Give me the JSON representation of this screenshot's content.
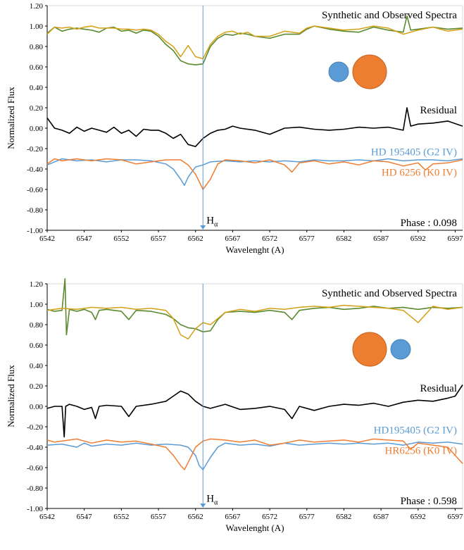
{
  "chart_data": [
    {
      "type": "line",
      "xlabel": "Wavelenght (A)",
      "ylabel": "Normalized Flux",
      "xlim": [
        6542,
        6598
      ],
      "ylim": [
        -1.0,
        1.2
      ],
      "xticks": [
        6542,
        6547,
        6552,
        6557,
        6562,
        6567,
        6572,
        6577,
        6582,
        6587,
        6592,
        6597
      ],
      "yticks": [
        "1.20",
        "1.00",
        "0.80",
        "0.60",
        "0.40",
        "0.20",
        "0.00",
        "-0.20",
        "-0.40",
        "-0.60",
        "-0.80",
        "-1.00"
      ],
      "grid": false,
      "annotations": {
        "synthetic_observed": "Synthetic and Observed Spectra",
        "residual": "Residual",
        "primary": "HD 195405 (G2 IV)",
        "secondary": "HD 6256 (K0 IV)",
        "phase": "Phase : 0.098",
        "halpha": "H",
        "halpha_sub": "α"
      },
      "halpha_x": 6563.0,
      "colors": {
        "observed": "#5b8a2e",
        "synthetic": "#d4a017",
        "residual": "#000000",
        "primary": "#5b9bd5",
        "secondary": "#ed7d31"
      },
      "star_order": [
        "blue",
        "orange"
      ],
      "series": [
        {
          "key": "observed",
          "x": [
            6542,
            6543,
            6544,
            6545,
            6546,
            6547,
            6548,
            6549,
            6550,
            6551,
            6552,
            6553,
            6554,
            6555,
            6556,
            6557,
            6558,
            6559,
            6560,
            6561,
            6562,
            6563,
            6564,
            6565,
            6566,
            6567,
            6568,
            6569,
            6570,
            6572,
            6574,
            6576,
            6577,
            6578,
            6580,
            6582,
            6584,
            6586,
            6588,
            6590,
            6590.5,
            6591,
            6592,
            6594,
            6596,
            6598
          ],
          "values": [
            0.93,
            0.99,
            0.95,
            0.97,
            0.98,
            0.97,
            0.96,
            0.94,
            0.98,
            0.99,
            0.95,
            0.96,
            0.93,
            0.96,
            0.95,
            0.9,
            0.82,
            0.76,
            0.66,
            0.63,
            0.62,
            0.63,
            0.8,
            0.88,
            0.92,
            0.91,
            0.93,
            0.92,
            0.9,
            0.88,
            0.92,
            0.92,
            0.97,
            1.0,
            0.97,
            0.95,
            0.94,
            0.99,
            0.96,
            0.94,
            1.1,
            0.96,
            0.97,
            0.99,
            0.97,
            0.98
          ]
        },
        {
          "key": "synthetic",
          "x": [
            6542,
            6543,
            6544,
            6545,
            6546,
            6547,
            6548,
            6549,
            6550,
            6551,
            6552,
            6553,
            6554,
            6555,
            6556,
            6557,
            6558,
            6559,
            6560,
            6561,
            6562,
            6563,
            6564,
            6565,
            6566,
            6567,
            6568,
            6569,
            6570,
            6572,
            6574,
            6576,
            6577,
            6578,
            6580,
            6582,
            6584,
            6586,
            6588,
            6590,
            6592,
            6594,
            6596,
            6598
          ],
          "values": [
            0.92,
            0.99,
            0.98,
            0.99,
            0.97,
            0.99,
            1.0,
            0.98,
            0.98,
            0.98,
            0.97,
            0.97,
            0.96,
            0.97,
            0.96,
            0.92,
            0.85,
            0.8,
            0.7,
            0.81,
            0.7,
            0.68,
            0.82,
            0.9,
            0.94,
            0.95,
            0.92,
            0.94,
            0.9,
            0.9,
            0.95,
            0.93,
            0.98,
            1.0,
            0.98,
            0.96,
            0.97,
            1.0,
            0.98,
            0.92,
            0.96,
            0.99,
            0.95,
            0.97
          ]
        },
        {
          "key": "residual",
          "x": [
            6542,
            6543,
            6544,
            6545,
            6546,
            6547,
            6548,
            6549,
            6550,
            6551,
            6552,
            6553,
            6554,
            6555,
            6556,
            6557,
            6558,
            6559,
            6560,
            6561,
            6562,
            6563,
            6564,
            6565,
            6566,
            6567,
            6568,
            6570,
            6572,
            6574,
            6576,
            6578,
            6580,
            6582,
            6584,
            6586,
            6588,
            6590,
            6590.5,
            6591,
            6592,
            6594,
            6596,
            6598
          ],
          "values": [
            0.1,
            0.0,
            -0.02,
            -0.05,
            0.01,
            -0.03,
            0.0,
            -0.02,
            -0.04,
            0.01,
            -0.05,
            -0.02,
            -0.08,
            -0.01,
            -0.02,
            -0.02,
            -0.05,
            -0.1,
            -0.06,
            -0.16,
            -0.18,
            -0.1,
            -0.05,
            -0.02,
            -0.01,
            0.02,
            0.0,
            -0.02,
            -0.06,
            0.0,
            0.01,
            -0.01,
            -0.02,
            -0.01,
            0.01,
            0.0,
            0.01,
            -0.02,
            0.2,
            0.02,
            0.04,
            0.05,
            0.07,
            0.02
          ]
        },
        {
          "key": "primary",
          "x": [
            6542,
            6544,
            6546,
            6548,
            6550,
            6552,
            6554,
            6556,
            6558,
            6559,
            6560,
            6560.5,
            6561,
            6562,
            6563,
            6564,
            6566,
            6568,
            6570,
            6572,
            6574,
            6576,
            6578,
            6580,
            6582,
            6584,
            6586,
            6588,
            6590,
            6592,
            6594,
            6596,
            6598
          ],
          "values": [
            -0.36,
            -0.3,
            -0.32,
            -0.31,
            -0.33,
            -0.31,
            -0.31,
            -0.32,
            -0.35,
            -0.4,
            -0.5,
            -0.56,
            -0.48,
            -0.38,
            -0.36,
            -0.33,
            -0.32,
            -0.33,
            -0.32,
            -0.33,
            -0.32,
            -0.33,
            -0.31,
            -0.32,
            -0.32,
            -0.31,
            -0.32,
            -0.3,
            -0.32,
            -0.31,
            -0.31,
            -0.32,
            -0.3
          ]
        },
        {
          "key": "secondary",
          "x": [
            6542,
            6543,
            6544,
            6546,
            6548,
            6550,
            6552,
            6554,
            6556,
            6558,
            6560,
            6561,
            6562,
            6563,
            6564,
            6565,
            6566,
            6568,
            6570,
            6572,
            6574,
            6575,
            6576,
            6578,
            6580,
            6582,
            6584,
            6586,
            6588,
            6590,
            6592,
            6593,
            6594,
            6596,
            6598
          ],
          "values": [
            -0.35,
            -0.3,
            -0.32,
            -0.3,
            -0.32,
            -0.3,
            -0.31,
            -0.35,
            -0.33,
            -0.31,
            -0.31,
            -0.36,
            -0.45,
            -0.6,
            -0.5,
            -0.35,
            -0.31,
            -0.32,
            -0.34,
            -0.31,
            -0.36,
            -0.43,
            -0.34,
            -0.32,
            -0.35,
            -0.33,
            -0.36,
            -0.32,
            -0.33,
            -0.37,
            -0.34,
            -0.41,
            -0.35,
            -0.34,
            -0.31
          ]
        }
      ]
    },
    {
      "type": "line",
      "xlabel": "Wavelenght (A)",
      "ylabel": "Normalized Flux",
      "xlim": [
        6542,
        6598
      ],
      "ylim": [
        -1.0,
        1.2
      ],
      "xticks": [
        6542,
        6547,
        6552,
        6557,
        6562,
        6567,
        6572,
        6577,
        6582,
        6587,
        6592,
        6597
      ],
      "yticks": [
        "1.20",
        "1.00",
        "0.80",
        "0.60",
        "0.40",
        "0.20",
        "0.00",
        "-0.20",
        "-0.40",
        "-0.60",
        "-0.80",
        "-1.00"
      ],
      "grid": false,
      "annotations": {
        "synthetic_observed": "Synthetic and Observed Spectra",
        "residual": "Residual",
        "primary": "HD195405 (G2 IV)",
        "secondary": "HR6256 (K0 IV)",
        "phase": "Phase : 0.598",
        "halpha": "H",
        "halpha_sub": "α"
      },
      "halpha_x": 6563.0,
      "colors": {
        "observed": "#5b8a2e",
        "synthetic": "#d4a017",
        "residual": "#000000",
        "primary": "#5b9bd5",
        "secondary": "#ed7d31"
      },
      "star_order": [
        "orange",
        "blue"
      ],
      "series": [
        {
          "key": "observed",
          "x": [
            6542,
            6543,
            6544,
            6544.4,
            6544.6,
            6545,
            6546,
            6547,
            6548,
            6548.5,
            6549,
            6550,
            6552,
            6553,
            6554,
            6556,
            6558,
            6559,
            6560,
            6561,
            6562,
            6563,
            6564,
            6565,
            6566,
            6568,
            6570,
            6572,
            6574,
            6575,
            6576,
            6578,
            6580,
            6582,
            6584,
            6586,
            6588,
            6590,
            6592,
            6594,
            6596,
            6598
          ],
          "values": [
            0.95,
            0.93,
            0.94,
            1.25,
            0.7,
            0.95,
            0.93,
            0.95,
            0.92,
            0.85,
            0.94,
            0.95,
            0.93,
            0.85,
            0.94,
            0.93,
            0.9,
            0.86,
            0.8,
            0.77,
            0.76,
            0.73,
            0.74,
            0.85,
            0.92,
            0.93,
            0.92,
            0.94,
            0.92,
            0.85,
            0.94,
            0.96,
            0.97,
            0.95,
            0.96,
            0.98,
            0.96,
            0.97,
            0.95,
            0.97,
            0.96,
            0.97
          ]
        },
        {
          "key": "synthetic",
          "x": [
            6542,
            6544,
            6546,
            6548,
            6550,
            6552,
            6554,
            6556,
            6558,
            6559,
            6560,
            6561,
            6562,
            6563,
            6564,
            6565,
            6566,
            6568,
            6570,
            6572,
            6574,
            6576,
            6578,
            6580,
            6582,
            6584,
            6586,
            6588,
            6590,
            6592,
            6594,
            6596,
            6598
          ],
          "values": [
            0.94,
            0.96,
            0.95,
            0.97,
            0.96,
            0.97,
            0.95,
            0.96,
            0.94,
            0.86,
            0.7,
            0.66,
            0.76,
            0.82,
            0.8,
            0.86,
            0.92,
            0.95,
            0.93,
            0.96,
            0.95,
            0.97,
            0.98,
            0.97,
            0.99,
            0.98,
            0.97,
            0.96,
            0.94,
            0.82,
            0.98,
            0.95,
            0.97
          ]
        },
        {
          "key": "residual",
          "x": [
            6542,
            6543,
            6544,
            6544.3,
            6544.5,
            6545,
            6546,
            6547,
            6548,
            6548.5,
            6549,
            6550,
            6552,
            6553,
            6554,
            6556,
            6558,
            6559,
            6560,
            6561,
            6562,
            6563,
            6564,
            6565,
            6566,
            6568,
            6570,
            6572,
            6574,
            6575,
            6576,
            6578,
            6580,
            6582,
            6584,
            6586,
            6588,
            6590,
            6592,
            6594,
            6596,
            6597,
            6598
          ],
          "values": [
            -0.02,
            0.0,
            0.0,
            -0.3,
            0.0,
            0.02,
            0.0,
            -0.03,
            -0.01,
            -0.12,
            0.0,
            0.01,
            0.0,
            -0.1,
            0.0,
            0.02,
            0.05,
            0.1,
            0.15,
            0.12,
            0.05,
            0.0,
            -0.02,
            0.0,
            0.02,
            -0.03,
            -0.02,
            0.0,
            -0.03,
            -0.12,
            0.0,
            -0.04,
            0.0,
            0.02,
            0.01,
            0.03,
            0.0,
            0.04,
            0.06,
            0.05,
            0.08,
            0.1,
            0.21
          ]
        },
        {
          "key": "primary",
          "x": [
            6542,
            6544,
            6546,
            6547,
            6548,
            6550,
            6552,
            6554,
            6556,
            6558,
            6560,
            6561,
            6562,
            6562.5,
            6563,
            6564,
            6565,
            6566,
            6568,
            6570,
            6572,
            6574,
            6576,
            6578,
            6580,
            6582,
            6584,
            6586,
            6588,
            6590,
            6592,
            6594,
            6596,
            6598
          ],
          "values": [
            -0.38,
            -0.37,
            -0.4,
            -0.36,
            -0.39,
            -0.37,
            -0.38,
            -0.36,
            -0.38,
            -0.37,
            -0.38,
            -0.4,
            -0.48,
            -0.58,
            -0.62,
            -0.5,
            -0.4,
            -0.36,
            -0.38,
            -0.37,
            -0.39,
            -0.36,
            -0.38,
            -0.37,
            -0.36,
            -0.37,
            -0.36,
            -0.37,
            -0.36,
            -0.38,
            -0.35,
            -0.36,
            -0.35,
            -0.37
          ]
        },
        {
          "key": "secondary",
          "x": [
            6542,
            6543,
            6544,
            6546,
            6548,
            6550,
            6552,
            6554,
            6556,
            6558,
            6559,
            6560,
            6560.5,
            6561,
            6562,
            6563,
            6564,
            6566,
            6568,
            6570,
            6572,
            6574,
            6576,
            6578,
            6580,
            6582,
            6584,
            6586,
            6588,
            6590,
            6591,
            6592,
            6594,
            6596,
            6597,
            6598
          ],
          "values": [
            -0.33,
            -0.35,
            -0.34,
            -0.32,
            -0.36,
            -0.33,
            -0.35,
            -0.34,
            -0.37,
            -0.4,
            -0.48,
            -0.58,
            -0.62,
            -0.55,
            -0.4,
            -0.34,
            -0.32,
            -0.33,
            -0.35,
            -0.33,
            -0.38,
            -0.36,
            -0.33,
            -0.35,
            -0.34,
            -0.33,
            -0.35,
            -0.32,
            -0.33,
            -0.34,
            -0.42,
            -0.36,
            -0.38,
            -0.4,
            -0.48,
            -0.56
          ]
        }
      ]
    }
  ]
}
